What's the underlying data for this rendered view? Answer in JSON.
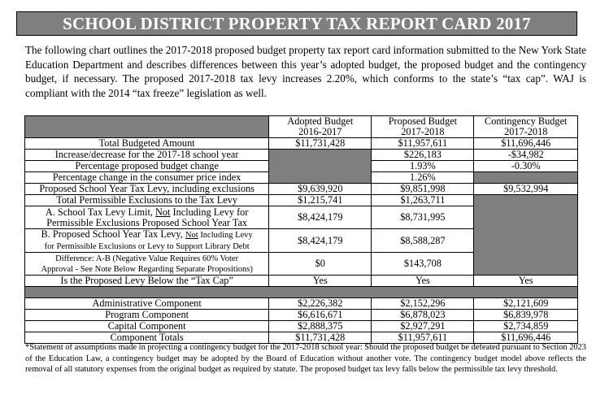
{
  "title": "SCHOOL DISTRICT PROPERTY TAX REPORT CARD 2017",
  "intro": "The following chart outlines the 2017-2018 proposed budget property tax report card information submitted to the New York State Education Department and describes differences between this year’s adopted budget, the proposed budget and the contingency budget, if necessary. The proposed 2017-2018 tax levy increases 2.20%, which conforms to the state’s “tax cap”. WAJ is compliant with the 2014 “tax freeze” legislation as well.",
  "colors": {
    "shade": "#7f7f7f"
  },
  "table": {
    "headers": [
      {
        "l1": "Adopted Budget",
        "l2": "2016-2017"
      },
      {
        "l1": "Proposed Budget",
        "l2": "2017-2018"
      },
      {
        "l1": "Contingency Budget",
        "l2": "2017-2018"
      }
    ],
    "rows": [
      {
        "label": "Total Budgeted Amount",
        "adopted": "$11,731,428",
        "proposed": "$11,957,611",
        "contingency": "$11,696,446"
      },
      {
        "label": "Increase/decrease for the 2017-18 school year",
        "proposed": "$226,183",
        "contingency": "-$34,982"
      },
      {
        "label": "Percentage proposed budget change",
        "proposed": "1.93%",
        "contingency": "-0.30%"
      },
      {
        "label": "Percentage change in the consumer price index",
        "proposed": "1.26%"
      },
      {
        "label": "Proposed School Year Tax Levy, including exclusions",
        "adopted": "$9,639,920",
        "proposed": "$9,851,998",
        "contingency": "$9,532,994"
      },
      {
        "label": "Total Permissible Exclusions to the Tax Levy",
        "adopted": "$1,215,741",
        "proposed": "$1,263,711"
      },
      {
        "label_a": "A. School Tax Levy Limit, ",
        "label_u": "Not",
        "label_b": " Including Levy for",
        "label_2": "Permissible Exclusions Proposed School Year Tax",
        "adopted": "$8,424,179",
        "proposed": "$8,731,995"
      },
      {
        "label_a": "B. Proposed School Year Tax Levy, ",
        "label_u": "Not",
        "label_b": " Including Levy",
        "label_2": "for Permissible Exclusions or Levy to Support Library Debt",
        "adopted": "$8,424,179",
        "proposed": "$8,588,287"
      },
      {
        "label_1": "Difference: A-B (Negative Value Requires 60% Voter",
        "label_2": "Approval - See Note Below Regarding Separate Propositions)",
        "adopted": "$0",
        "proposed": "$143,708"
      },
      {
        "label": "Is the Proposed Levy Below the “Tax Cap”",
        "adopted": "Yes",
        "proposed": "Yes",
        "contingency": "Yes"
      }
    ],
    "components": [
      {
        "label": "Administrative Component",
        "adopted": "$2,226,382",
        "proposed": "$2,152,296",
        "contingency": "$2,121,609"
      },
      {
        "label": "Program Component",
        "adopted": "$6,616,671",
        "proposed": "$6,878,023",
        "contingency": "$6,839,978"
      },
      {
        "label": "Capital Component",
        "adopted": "$2,888,375",
        "proposed": "$2,927,291",
        "contingency": "$2,734,859"
      },
      {
        "label": "Component Totals",
        "adopted": "$11,731,428",
        "proposed": "$11,957,611",
        "contingency": "$11,696,446"
      }
    ]
  },
  "footnote": "*Statement of assumptions made in projecting a contingency budget for the 2017-2018 school year: Should the proposed budget be defeated pursuant to Section 2023 of the Education Law, a contingency budget may be adopted by the Board of Education without another vote.  The contingency budget model above reflects the removal of all statutory expenses from the original budget as required by statute. The proposed budget tax levy falls below the permissible tax levy threshold."
}
